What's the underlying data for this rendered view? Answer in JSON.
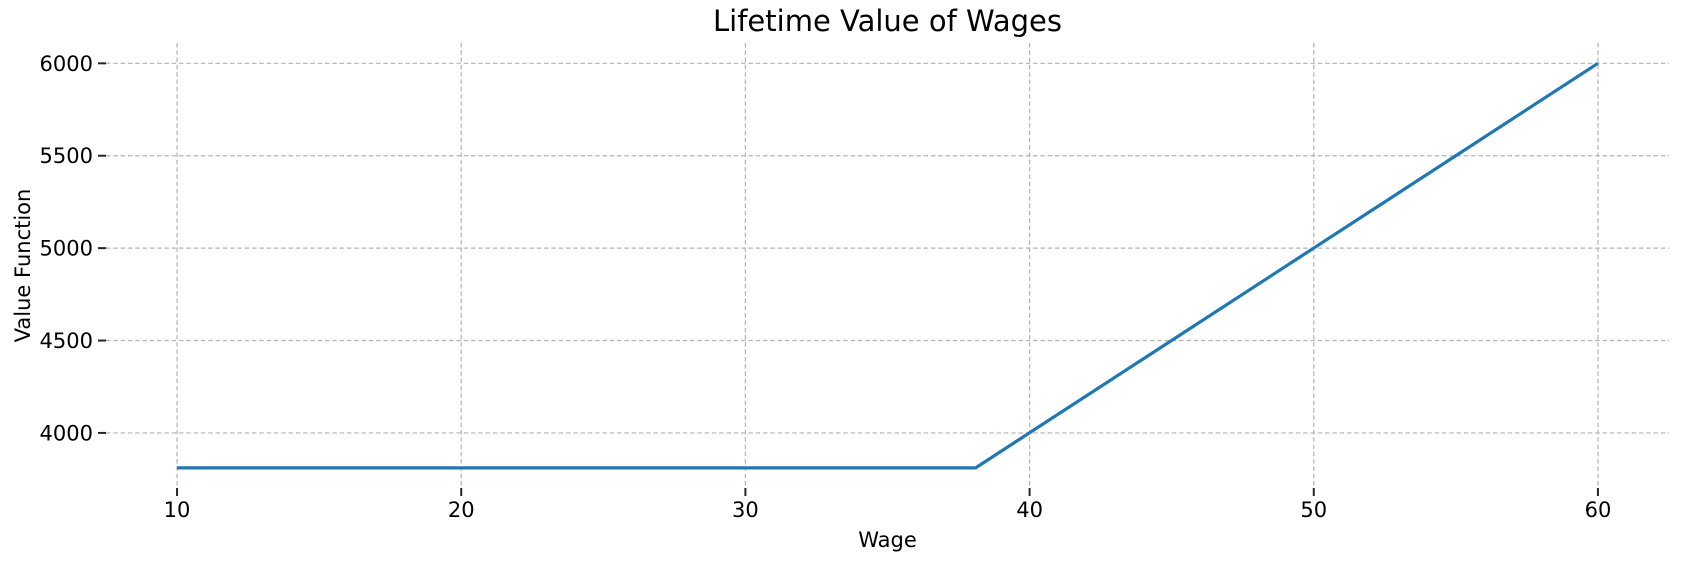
{
  "figure": {
    "background": "#ffffff"
  },
  "chart_data": {
    "type": "line",
    "title": "Lifetime Value of Wages",
    "xlabel": "Wage",
    "ylabel": "Value Function",
    "xlim": [
      7.5,
      62.5
    ],
    "ylim": [
      3702,
      6110
    ],
    "xticks": [
      10,
      20,
      30,
      40,
      50,
      60
    ],
    "yticks": [
      4000,
      4500,
      5000,
      5500,
      6000
    ],
    "grid": "on",
    "grid_style": "dashed",
    "legend_position": "none",
    "series": [
      {
        "name": "value function",
        "color": "#1f77b4",
        "points": [
          [
            10,
            3811
          ],
          [
            38.1,
            3811
          ],
          [
            60,
            6000
          ]
        ],
        "description": "Flat at ~3811 for wages below the reservation wage ~38.1, then rises linearly (V = 100 * wage) up to 6000 at wage 60"
      }
    ],
    "reservation_wage": 38.1,
    "flat_value": 3811,
    "colors": {
      "line": "#1f77b4",
      "grid": "#b3b3b3",
      "tick": "#262626",
      "text": "#000000"
    }
  }
}
